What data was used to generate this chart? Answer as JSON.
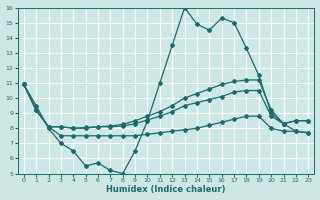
{
  "xlabel": "Humidex (Indice chaleur)",
  "bg_color": "#cde8e4",
  "line_color": "#1a6b6b",
  "grid_color": "#b8d8d4",
  "xlim": [
    -0.5,
    23.5
  ],
  "ylim": [
    5,
    16
  ],
  "xticks": [
    0,
    1,
    2,
    3,
    4,
    5,
    6,
    7,
    8,
    9,
    10,
    11,
    12,
    13,
    14,
    15,
    16,
    17,
    18,
    19,
    20,
    21,
    22,
    23
  ],
  "yticks": [
    5,
    6,
    7,
    8,
    9,
    10,
    11,
    12,
    13,
    14,
    15,
    16
  ],
  "line1_x": [
    0,
    1,
    2,
    3,
    4,
    5,
    6,
    7,
    8,
    9,
    10,
    11,
    12,
    13,
    14,
    15,
    16,
    17,
    18,
    19,
    20,
    21,
    22,
    23
  ],
  "line1_y": [
    10.9,
    9.5,
    8.0,
    7.0,
    6.5,
    5.5,
    5.7,
    5.2,
    5.0,
    6.5,
    8.5,
    11.0,
    13.5,
    16.0,
    14.9,
    14.5,
    15.3,
    15.0,
    13.3,
    11.5,
    9.0,
    8.3,
    8.5,
    8.5
  ],
  "line2_x": [
    0,
    1,
    2,
    3,
    4,
    5,
    6,
    7,
    8,
    9,
    10,
    11,
    12,
    13,
    14,
    15,
    16,
    17,
    18,
    19,
    20,
    21,
    22,
    23
  ],
  "line2_y": [
    10.9,
    9.2,
    8.1,
    8.1,
    8.0,
    8.0,
    8.1,
    8.15,
    8.25,
    8.5,
    8.8,
    9.1,
    9.5,
    10.0,
    10.3,
    10.6,
    10.9,
    11.1,
    11.2,
    11.2,
    9.2,
    8.3,
    7.8,
    7.7
  ],
  "line3_x": [
    0,
    1,
    2,
    3,
    4,
    5,
    6,
    7,
    8,
    9,
    10,
    11,
    12,
    13,
    14,
    15,
    16,
    17,
    18,
    19,
    20,
    21,
    22,
    23
  ],
  "line3_y": [
    10.9,
    9.2,
    8.1,
    7.5,
    7.5,
    7.5,
    7.5,
    7.5,
    7.5,
    7.5,
    7.6,
    7.7,
    7.8,
    7.9,
    8.0,
    8.2,
    8.4,
    8.6,
    8.8,
    8.8,
    8.0,
    7.8,
    7.8,
    7.7
  ],
  "line4_x": [
    0,
    1,
    2,
    3,
    4,
    5,
    6,
    7,
    8,
    9,
    10,
    11,
    12,
    13,
    14,
    15,
    16,
    17,
    18,
    19,
    20,
    21,
    22,
    23
  ],
  "line4_y": [
    10.9,
    9.2,
    8.1,
    8.1,
    8.0,
    8.05,
    8.1,
    8.1,
    8.15,
    8.3,
    8.55,
    8.8,
    9.1,
    9.5,
    9.7,
    9.9,
    10.1,
    10.4,
    10.5,
    10.5,
    8.8,
    8.3,
    8.5,
    8.5
  ]
}
